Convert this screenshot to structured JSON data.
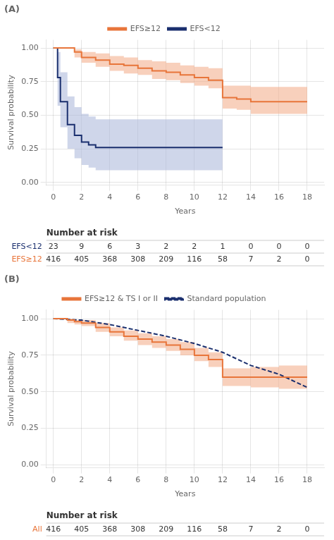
{
  "chart_data": [
    {
      "type": "line",
      "title": "(A)",
      "x_label": "Years",
      "y_label": "Survival probability",
      "xlim": [
        -0.5,
        19.2
      ],
      "ylim": [
        -0.02,
        1.06
      ],
      "xticks": [
        0,
        2,
        4,
        6,
        8,
        10,
        12,
        14,
        16,
        18
      ],
      "yticks": [
        {
          "value": 0.0,
          "label": "0.00"
        },
        {
          "value": 0.25,
          "label": "0.25"
        },
        {
          "value": 0.5,
          "label": "0.50"
        },
        {
          "value": 0.75,
          "label": "0.75"
        },
        {
          "value": 1.0,
          "label": "1.00"
        }
      ],
      "grid": true,
      "legend": "top",
      "series": [
        {
          "name": "EFS≥12",
          "color": "#E8753A",
          "ci_color": "#F2AA85",
          "line_style": "step",
          "x": [
            0,
            1,
            1.5,
            2,
            3,
            4,
            5,
            6,
            7,
            8,
            9,
            10,
            11,
            12,
            13,
            14,
            15,
            16,
            17,
            18
          ],
          "values": [
            1.0,
            1.0,
            0.97,
            0.93,
            0.91,
            0.88,
            0.87,
            0.85,
            0.83,
            0.82,
            0.8,
            0.78,
            0.76,
            0.63,
            0.62,
            0.6,
            0.6,
            0.6,
            0.6,
            0.6
          ],
          "upper": [
            1.0,
            1.0,
            0.99,
            0.97,
            0.96,
            0.94,
            0.93,
            0.91,
            0.9,
            0.89,
            0.87,
            0.86,
            0.85,
            0.72,
            0.72,
            0.71,
            0.71,
            0.71,
            0.71,
            0.69
          ],
          "lower": [
            1.0,
            1.0,
            0.93,
            0.89,
            0.86,
            0.83,
            0.81,
            0.8,
            0.77,
            0.76,
            0.74,
            0.72,
            0.7,
            0.55,
            0.54,
            0.51,
            0.51,
            0.51,
            0.51,
            0.52
          ]
        },
        {
          "name": "EFS<12",
          "color": "#1A2F6E",
          "ci_color": "#A8B4D8",
          "line_style": "step",
          "x": [
            0,
            0.3,
            0.5,
            1.0,
            1.5,
            2.0,
            2.5,
            3.0,
            4.0,
            5.0,
            6.0,
            7.0,
            8.0,
            9.0,
            10.0,
            11.0,
            12.0
          ],
          "values": [
            1.0,
            0.78,
            0.6,
            0.43,
            0.35,
            0.3,
            0.28,
            0.26,
            0.26,
            0.26,
            0.26,
            0.26,
            0.26,
            0.26,
            0.26,
            0.26,
            0.26
          ],
          "upper": [
            1.0,
            0.97,
            0.82,
            0.64,
            0.56,
            0.51,
            0.49,
            0.47,
            0.47,
            0.47,
            0.47,
            0.47,
            0.47,
            0.47,
            0.47,
            0.47,
            0.5
          ],
          "lower": [
            1.0,
            0.57,
            0.41,
            0.25,
            0.18,
            0.13,
            0.11,
            0.09,
            0.09,
            0.09,
            0.09,
            0.09,
            0.09,
            0.09,
            0.09,
            0.09,
            0.13
          ]
        }
      ],
      "risk_table": {
        "title": "Number at risk",
        "x": [
          0,
          2,
          4,
          6,
          8,
          10,
          12,
          14,
          16,
          18
        ],
        "rows": [
          {
            "name": "EFS<12",
            "color": "#1A2F6E",
            "values": [
              23,
              9,
              6,
              3,
              2,
              2,
              1,
              0,
              0,
              0
            ]
          },
          {
            "name": "EFS≥12",
            "color": "#E8753A",
            "values": [
              416,
              405,
              368,
              308,
              209,
              116,
              58,
              7,
              2,
              0
            ]
          }
        ]
      }
    },
    {
      "type": "line",
      "title": "(B)",
      "x_label": "Years",
      "y_label": "Survival probability",
      "xlim": [
        -0.5,
        19.2
      ],
      "ylim": [
        -0.02,
        1.06
      ],
      "xticks": [
        0,
        2,
        4,
        6,
        8,
        10,
        12,
        14,
        16,
        18
      ],
      "yticks": [
        {
          "value": 0.0,
          "label": "0.00"
        },
        {
          "value": 0.25,
          "label": "0.25"
        },
        {
          "value": 0.5,
          "label": "0.50"
        },
        {
          "value": 0.75,
          "label": "0.75"
        },
        {
          "value": 1.0,
          "label": "1.00"
        }
      ],
      "grid": true,
      "legend": "top",
      "series": [
        {
          "name": "EFS≥12 & TS I or II",
          "color": "#E8753A",
          "ci_color": "#F2AA85",
          "line_style": "step",
          "x": [
            0,
            0.5,
            1,
            1.5,
            2,
            3,
            4,
            5,
            6,
            7,
            8,
            9,
            10,
            11,
            12,
            13,
            14,
            15,
            16,
            17,
            18
          ],
          "values": [
            1.0,
            1.0,
            0.99,
            0.98,
            0.97,
            0.94,
            0.91,
            0.88,
            0.86,
            0.84,
            0.82,
            0.79,
            0.75,
            0.72,
            0.6,
            0.6,
            0.6,
            0.6,
            0.6,
            0.6,
            0.6
          ],
          "upper": [
            1.0,
            1.0,
            1.0,
            0.99,
            0.99,
            0.97,
            0.94,
            0.92,
            0.9,
            0.88,
            0.86,
            0.84,
            0.8,
            0.77,
            0.66,
            0.66,
            0.67,
            0.67,
            0.68,
            0.68,
            0.65
          ],
          "lower": [
            1.0,
            1.0,
            0.97,
            0.96,
            0.95,
            0.91,
            0.88,
            0.85,
            0.82,
            0.8,
            0.78,
            0.75,
            0.71,
            0.67,
            0.54,
            0.54,
            0.53,
            0.53,
            0.52,
            0.52,
            0.54
          ]
        },
        {
          "name": "Standard population",
          "color": "#1A2F6E",
          "line_style": "dashed",
          "x": [
            0,
            2,
            4,
            6,
            8,
            10,
            12,
            14,
            16,
            18
          ],
          "values": [
            1.0,
            0.99,
            0.96,
            0.92,
            0.88,
            0.83,
            0.77,
            0.68,
            0.62,
            0.53
          ]
        }
      ],
      "risk_table": {
        "title": "Number at risk",
        "x": [
          0,
          2,
          4,
          6,
          8,
          10,
          12,
          14,
          16,
          18
        ],
        "rows": [
          {
            "name": "All",
            "color": "#E8753A",
            "values": [
              416,
              405,
              368,
              308,
              209,
              116,
              58,
              7,
              2,
              0
            ]
          }
        ]
      }
    }
  ]
}
